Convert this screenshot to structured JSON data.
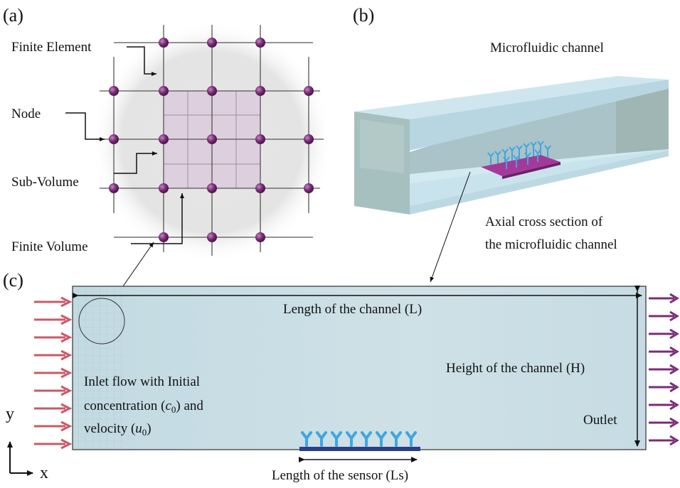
{
  "panels": {
    "a": "(a)",
    "b": "(b)",
    "c": "(c)"
  },
  "panel_a": {
    "finite_element": "Finite Element",
    "node": "Node",
    "sub_volume": "Sub-Volume",
    "finite_volume": "Finite Volume"
  },
  "panel_b": {
    "title": "Microfluidic channel",
    "cross_section_line1": "Axial cross section of",
    "cross_section_line2": "the microfluidic channel"
  },
  "panel_c": {
    "length_channel": "Length of the channel (L)",
    "height_channel": "Height of the channel (H)",
    "outlet": "Outlet",
    "inlet_line1": "Inlet flow with Initial",
    "inlet_line2_pre": "concentration (",
    "inlet_c_var": "c",
    "inlet_c_sub": "0",
    "inlet_line2_post": ") and",
    "inlet_line3_pre": "velocity (",
    "inlet_u_var": "u",
    "inlet_u_sub": "0",
    "inlet_line3_post": ")",
    "sensor_length": "Length of the sensor (Ls)",
    "sensor_glyphs": "YYYYYYYY",
    "axis_y": "y",
    "axis_x": "x"
  },
  "colors": {
    "node": "#7a2d78",
    "inlet_arrow": "#c95a68",
    "outlet_arrow": "#7a2d78",
    "channel_fill": "#c8dde4",
    "channel_3d_top": "#bfe1ec",
    "sensor_antibody": "#3fa6e0",
    "sensor_base": "#2a3f8a",
    "sensor_pad": "#a33a9a"
  }
}
